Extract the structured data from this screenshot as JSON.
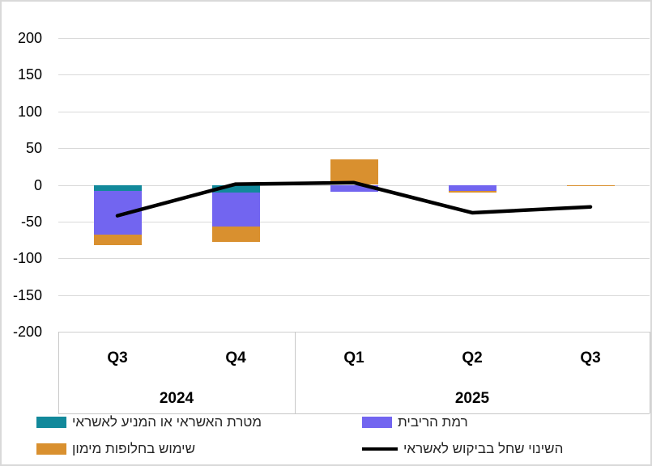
{
  "chart_data": {
    "type": "combo_stacked_bar_line",
    "title": "",
    "categories": [
      "Q3",
      "Q4",
      "Q1",
      "Q2",
      "Q3"
    ],
    "year_groups": [
      {
        "label": "2024",
        "start": 0,
        "end": 1
      },
      {
        "label": "2025",
        "start": 2,
        "end": 4
      }
    ],
    "y_axis": {
      "min": -200,
      "max": 200,
      "tick_step": 50,
      "ticks": [
        200,
        150,
        100,
        50,
        0,
        -50,
        -100,
        -150,
        -200
      ]
    },
    "grid": true,
    "legend_position": "bottom-two-columns",
    "series": [
      {
        "id": "credit-purpose",
        "label": "מטרת האשראי או המניע לאשראי",
        "type": "bar",
        "stacked": true,
        "color": "#12899B",
        "values": [
          -8,
          -10,
          0,
          0,
          0
        ]
      },
      {
        "id": "interest-rate-level",
        "label": "רמת הריבית",
        "type": "bar",
        "stacked": true,
        "color": "#7265F0",
        "values": [
          -60,
          -47,
          -9,
          -8,
          0
        ]
      },
      {
        "id": "financing-alternatives",
        "label": "שימוש בחלופות מימון",
        "type": "bar",
        "stacked": true,
        "color": "#D9902F",
        "values": [
          -14,
          -21,
          35,
          -2,
          -2
        ]
      },
      {
        "id": "credit-demand-change",
        "label": "השינוי שחל בביקוש לאשראי",
        "type": "line",
        "color": "#000000",
        "values": [
          -42,
          1,
          3,
          -38,
          -30
        ]
      }
    ],
    "legend_layout": [
      [
        "credit-purpose",
        "interest-rate-level"
      ],
      [
        "financing-alternatives",
        "credit-demand-change"
      ]
    ],
    "colors": {
      "gridline": "#d9d9d9",
      "box_border": "#c8c8c8",
      "axis_text": "#000000",
      "legend_text": "#262626",
      "background": "#ffffff"
    }
  }
}
